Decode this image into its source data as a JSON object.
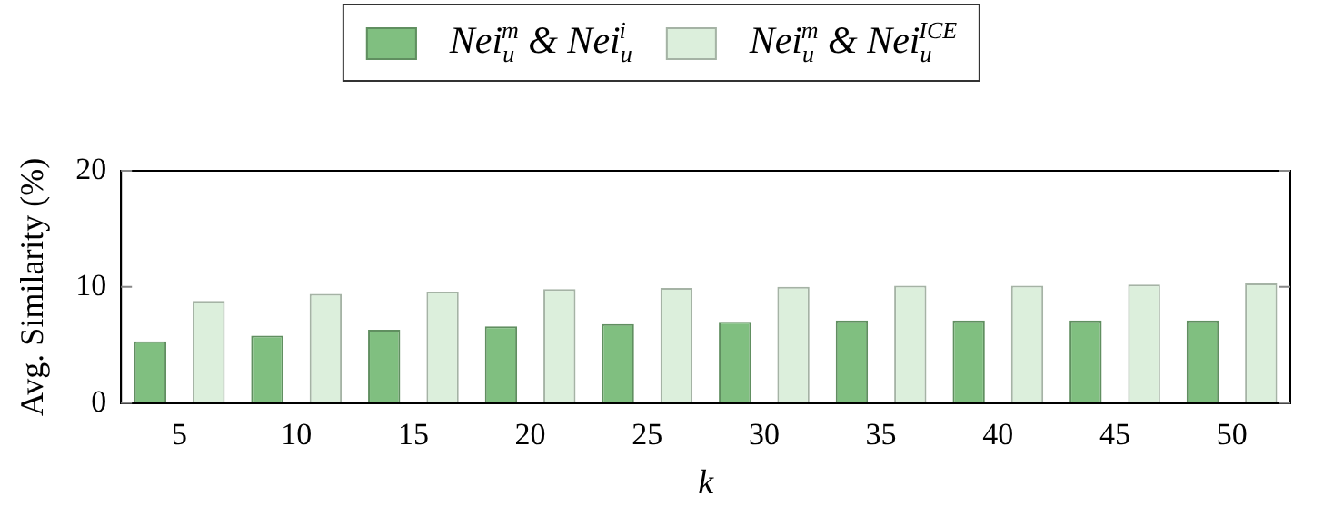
{
  "chart_data": {
    "type": "bar",
    "xlabel": "k",
    "ylabel": "Avg. Similarity (%)",
    "categories": [
      "5",
      "10",
      "15",
      "20",
      "25",
      "30",
      "35",
      "40",
      "45",
      "50"
    ],
    "series": [
      {
        "name": "Nei$_{u}$$^{m}$ & Nei$_{u}$$^{i}$",
        "color": "#80bf80",
        "values": [
          5.3,
          5.8,
          6.3,
          6.6,
          6.8,
          7.0,
          7.1,
          7.1,
          7.1,
          7.1
        ]
      },
      {
        "name": "Nei$_{u}$$^{m}$ & Nei$_{u}$$^{ICE}$",
        "color": "#dcefdc",
        "values": [
          8.8,
          9.4,
          9.6,
          9.8,
          9.9,
          10.0,
          10.1,
          10.1,
          10.2,
          10.3
        ]
      }
    ],
    "ylim": [
      0,
      20
    ],
    "yticks": [
      0,
      10,
      20
    ],
    "grid": false,
    "legend": "top"
  }
}
